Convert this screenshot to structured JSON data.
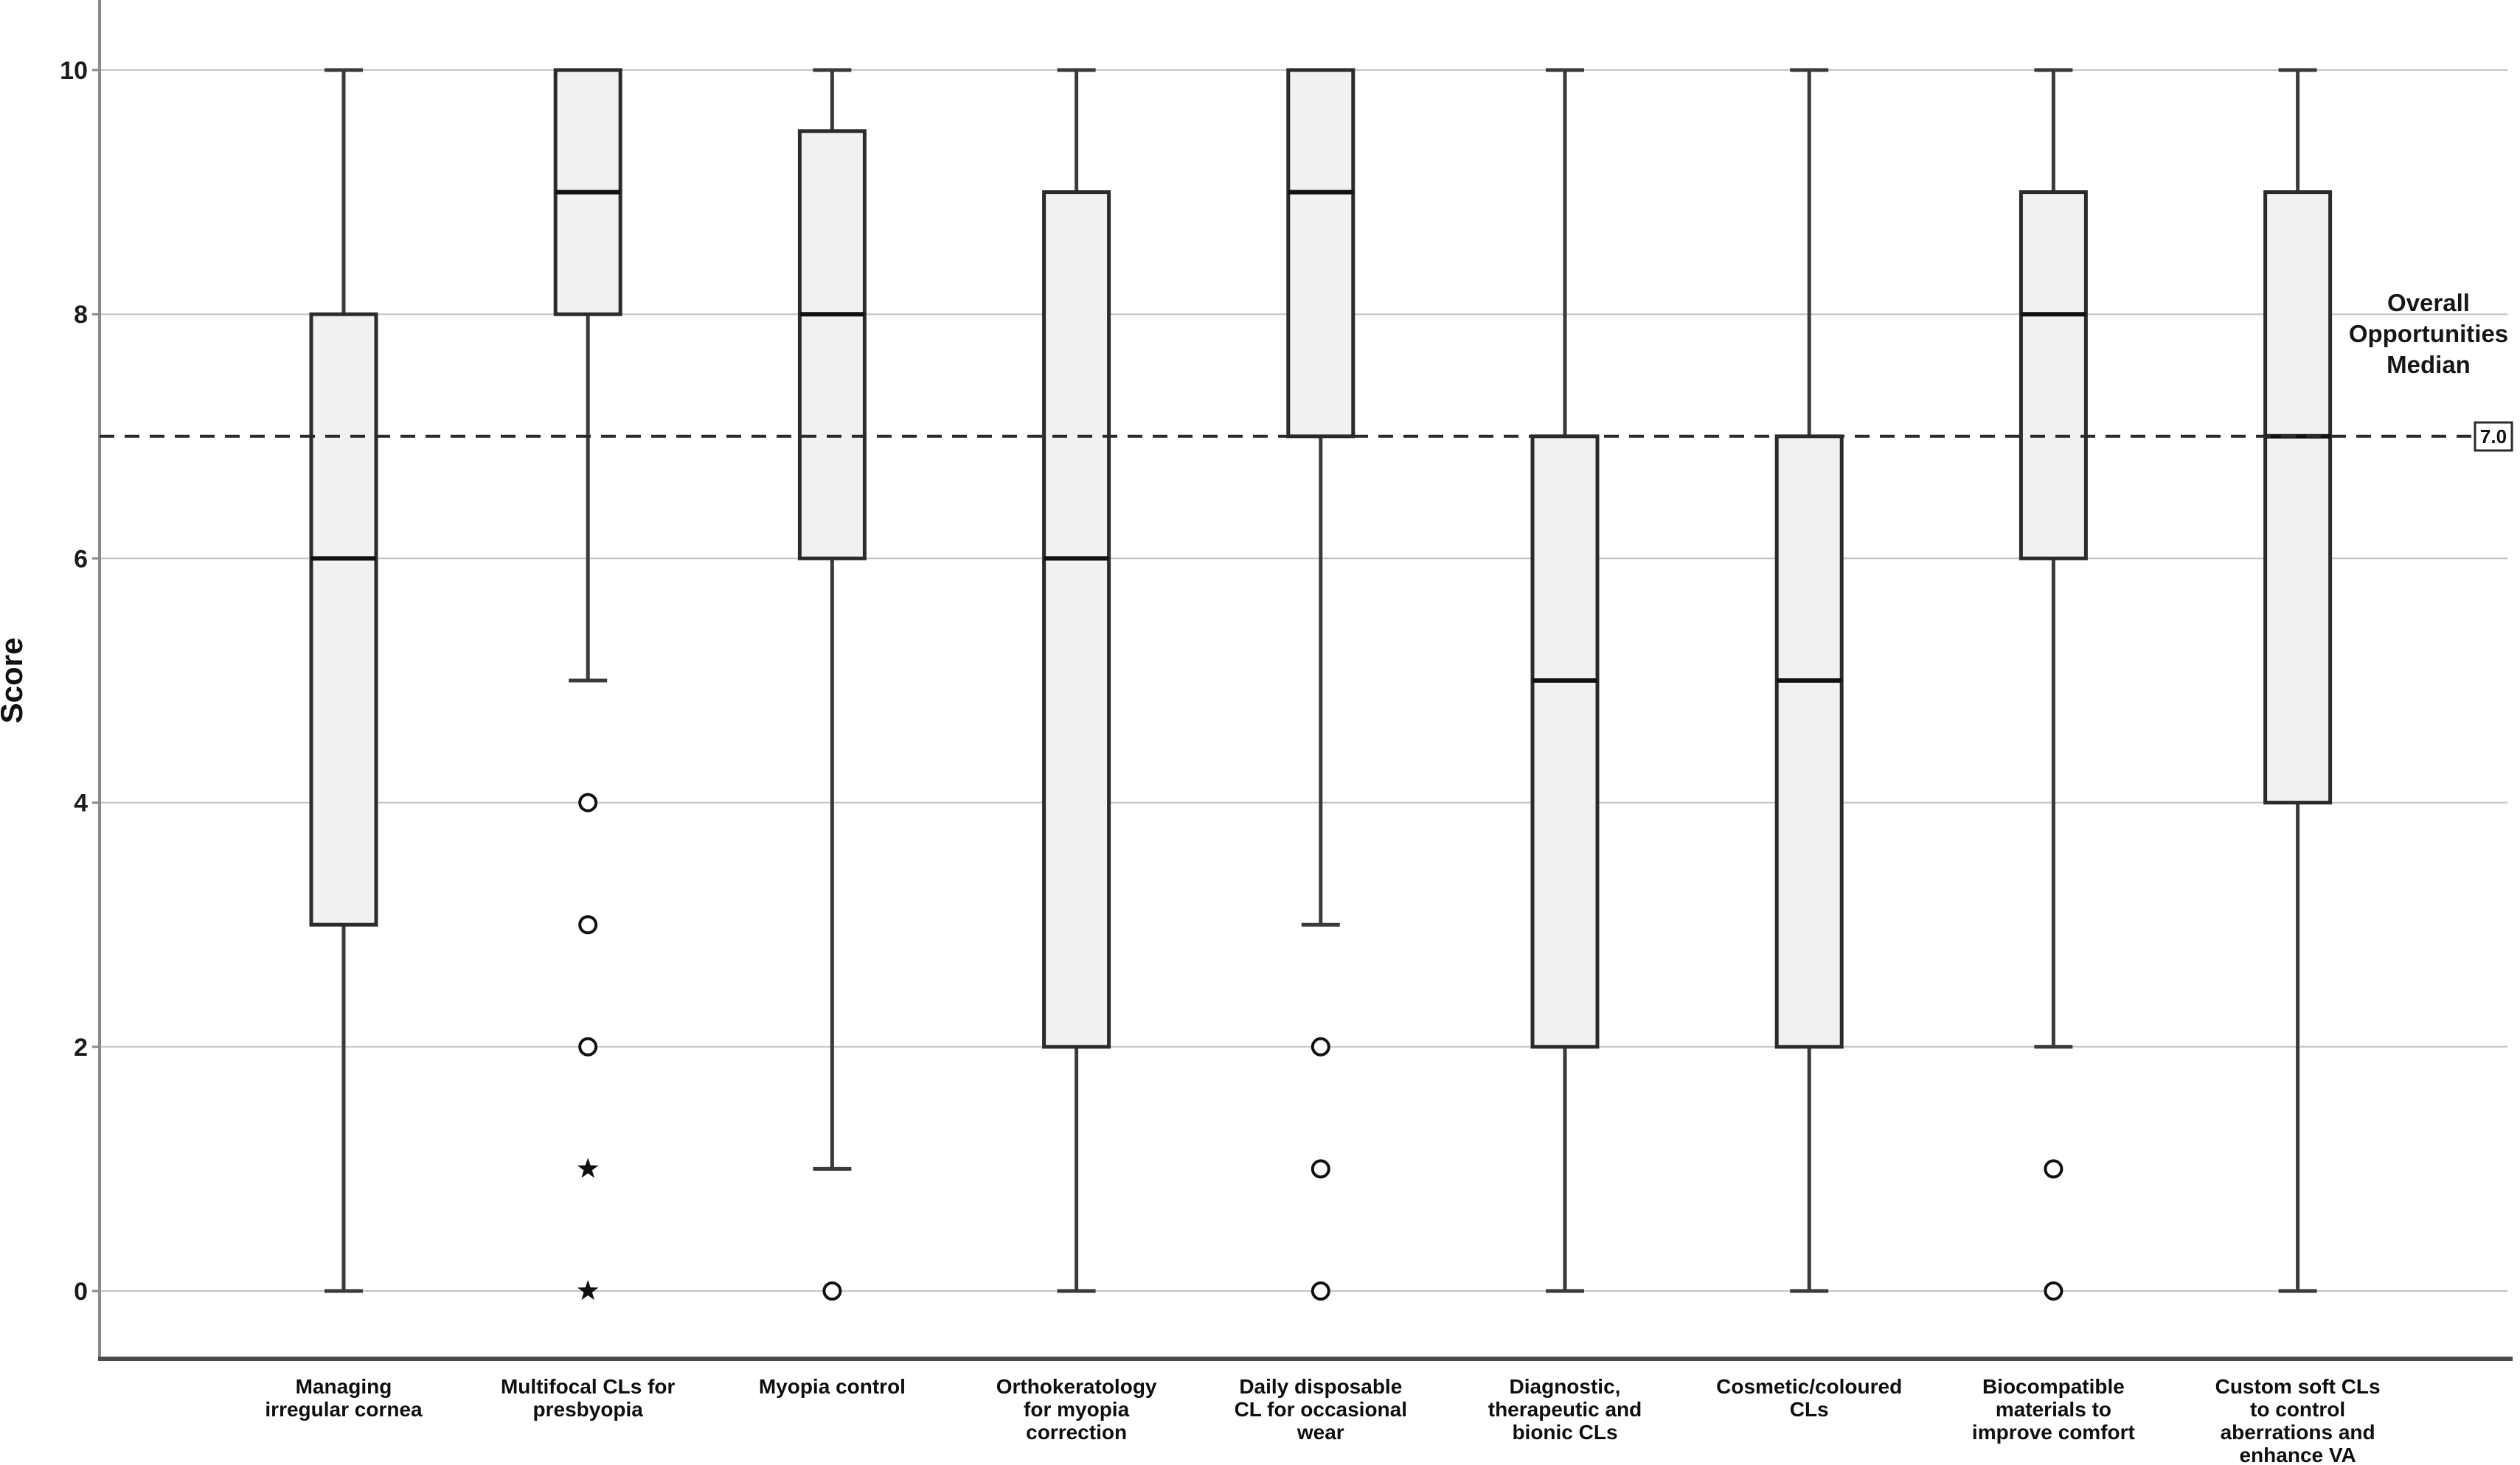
{
  "chart_data": {
    "type": "boxplot",
    "title": "",
    "ylabel": "Score",
    "xlabel": "",
    "ylim": [
      0,
      10
    ],
    "yticks": [
      0,
      2,
      4,
      6,
      8,
      10
    ],
    "grid": true,
    "legend_position": "none",
    "reference_line": {
      "value": 7.0,
      "value_label": "7.0",
      "label": "Overall Opportunities Median",
      "label_lines": [
        "Overall",
        "Opportunities",
        "Median"
      ]
    },
    "categories": [
      "Managing irregular cornea",
      "Multifocal CLs for presbyopia",
      "Myopia control",
      "Orthokeratology for myopia correction",
      "Daily disposable CL for occasional wear",
      "Diagnostic, therapeutic and bionic CLs",
      "Cosmetic/coloured CLs",
      "Biocompatible materials to improve comfort",
      "Custom soft CLs to control aberrations and enhance VA"
    ],
    "boxes": [
      {
        "category": "Managing irregular cornea",
        "label_lines": [
          "Managing",
          "irregular cornea"
        ],
        "whisker_low": 0,
        "q1": 3,
        "median": 6,
        "q3": 8,
        "whisker_high": 10,
        "outliers": [],
        "extremes": []
      },
      {
        "category": "Multifocal CLs for presbyopia",
        "label_lines": [
          "Multifocal CLs for",
          "presbyopia"
        ],
        "whisker_low": 5,
        "q1": 8,
        "median": 9,
        "q3": 10,
        "whisker_high": 10,
        "outliers": [
          4,
          3,
          2
        ],
        "extremes": [
          1,
          0
        ]
      },
      {
        "category": "Myopia control",
        "label_lines": [
          "Myopia control"
        ],
        "whisker_low": 1,
        "q1": 6,
        "median": 8,
        "q3": 9.5,
        "whisker_high": 10,
        "outliers": [
          0
        ],
        "extremes": []
      },
      {
        "category": "Orthokeratology for myopia correction",
        "label_lines": [
          "Orthokeratology",
          "for myopia",
          "correction"
        ],
        "whisker_low": 0,
        "q1": 2,
        "median": 6,
        "q3": 9,
        "whisker_high": 10,
        "outliers": [],
        "extremes": []
      },
      {
        "category": "Daily disposable CL for occasional wear",
        "label_lines": [
          "Daily disposable",
          "CL for occasional",
          "wear"
        ],
        "whisker_low": 3,
        "q1": 7,
        "median": 9,
        "q3": 10,
        "whisker_high": 10,
        "outliers": [
          2,
          1,
          0
        ],
        "extremes": []
      },
      {
        "category": "Diagnostic, therapeutic and bionic CLs",
        "label_lines": [
          "Diagnostic,",
          "therapeutic and",
          "bionic CLs"
        ],
        "whisker_low": 0,
        "q1": 2,
        "median": 5,
        "q3": 7,
        "whisker_high": 10,
        "outliers": [],
        "extremes": []
      },
      {
        "category": "Cosmetic/coloured CLs",
        "label_lines": [
          "Cosmetic/coloured",
          "CLs"
        ],
        "whisker_low": 0,
        "q1": 2,
        "median": 5,
        "q3": 7,
        "whisker_high": 10,
        "outliers": [],
        "extremes": []
      },
      {
        "category": "Biocompatible materials to improve comfort",
        "label_lines": [
          "Biocompatible",
          "materials to",
          "improve comfort"
        ],
        "whisker_low": 2,
        "q1": 6,
        "median": 8,
        "q3": 9,
        "whisker_high": 10,
        "outliers": [
          1,
          0
        ],
        "extremes": []
      },
      {
        "category": "Custom soft CLs to control aberrations and enhance VA",
        "label_lines": [
          "Custom soft CLs",
          "to control",
          "aberrations and",
          "enhance VA"
        ],
        "whisker_low": 0,
        "q1": 4,
        "median": 7,
        "q3": 9,
        "whisker_high": 10,
        "outliers": [],
        "extremes": []
      }
    ],
    "colors": {
      "box_fill": "#f1f1ef",
      "box_border": "#2b2b2b",
      "whisker": "#3a3a3a",
      "median": "#111111",
      "gridline": "#c4c4c4",
      "axis": "#8a8a8a",
      "baseline": "#4a4a4a",
      "reference": "#2a2a2a",
      "text": "#111111",
      "background": "#ffffff"
    }
  }
}
